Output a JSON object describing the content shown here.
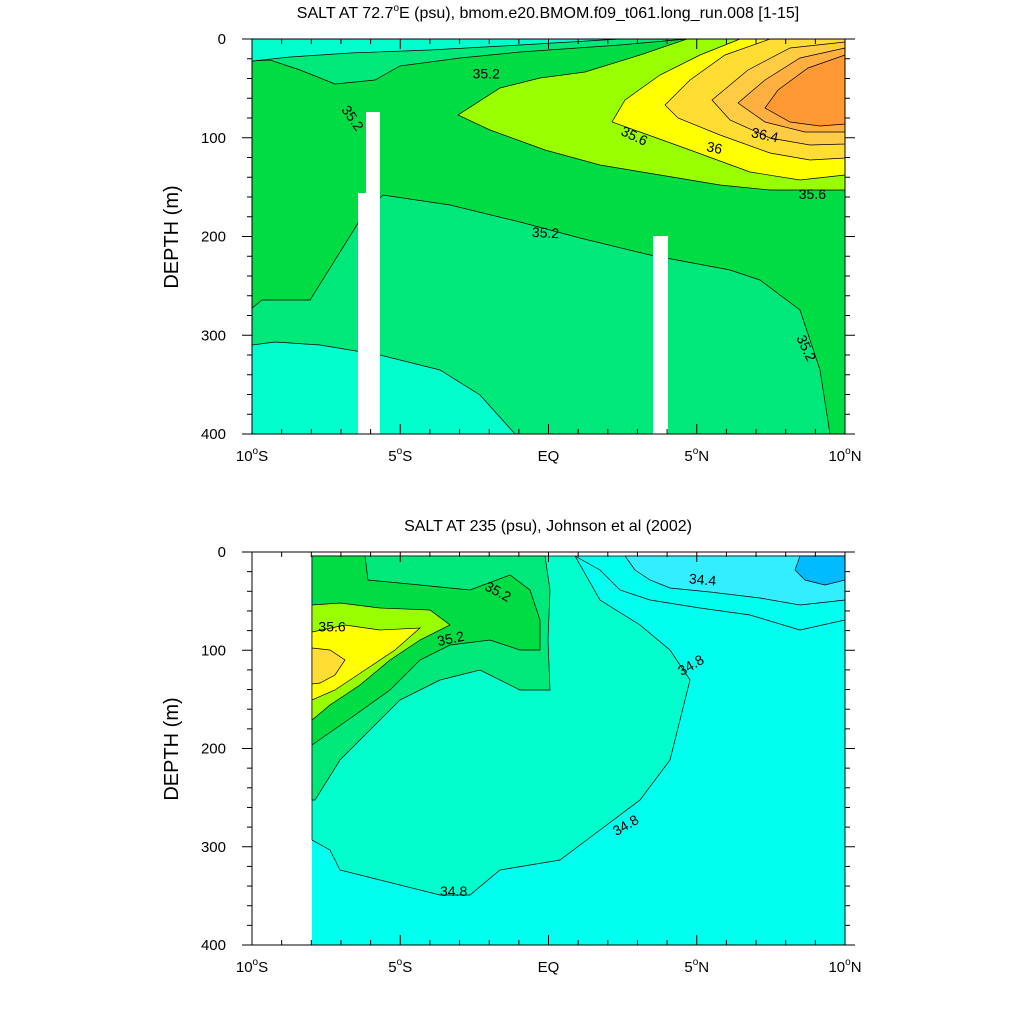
{
  "chart_data": [
    {
      "type": "contour",
      "title": "SALT AT  72.7°E (psu), bmom.e20.BMOM.f09_t061.long_run.008 [1-15]",
      "title_parts": {
        "a": "SALT AT  72.7",
        "deg": "o",
        "b": "E (psu), bmom.e20.BMOM.f09_t061.long_run.008 [1-15]"
      },
      "ylabel": "DEPTH (m)",
      "xlim": [
        -10,
        10
      ],
      "ylim": [
        0,
        400
      ],
      "y_inverted": true,
      "x_ticks": [
        {
          "value": -10,
          "num": "10",
          "deg": "o",
          "hem": "S"
        },
        {
          "value": -5,
          "num": "5",
          "deg": "o",
          "hem": "S"
        },
        {
          "value": 0,
          "num": "EQ",
          "deg": "",
          "hem": ""
        },
        {
          "value": 5,
          "num": "5",
          "deg": "o",
          "hem": "N"
        },
        {
          "value": 10,
          "num": "10",
          "deg": "o",
          "hem": "N"
        }
      ],
      "y_ticks": [
        0,
        100,
        200,
        300,
        400
      ],
      "colors": {
        "b34_8": "#00ffcc",
        "b35_0": "#00e87a",
        "b35_2": "#00dd44",
        "b35_4": "#99ff00",
        "b35_6": "#ffff00",
        "b35_8": "#ffdd33",
        "b36_0": "#ffcc44",
        "b36_2": "#ffb040",
        "b36_4": "#ff9933",
        "land": "#ffffff"
      },
      "contour_labels": [
        {
          "text": "35.2",
          "lat": -2.1,
          "depth": 35,
          "angle": 0
        },
        {
          "text": "35.2",
          "lat": -6.6,
          "depth": 80,
          "angle": 55
        },
        {
          "text": "35.6",
          "lat": 2.9,
          "depth": 98,
          "angle": 25
        },
        {
          "text": "36",
          "lat": 5.6,
          "depth": 110,
          "angle": 12
        },
        {
          "text": "36.4",
          "lat": 7.3,
          "depth": 97,
          "angle": 12
        },
        {
          "text": "35.6",
          "lat": 8.9,
          "depth": 157,
          "angle": 0
        },
        {
          "text": "35.2",
          "lat": -0.1,
          "depth": 196,
          "angle": 3
        },
        {
          "text": "35.2",
          "lat": 8.7,
          "depth": 313,
          "angle": 65
        }
      ]
    },
    {
      "type": "contour",
      "title": "SALT AT 235 (psu), Johnson et al (2002)",
      "ylabel": "DEPTH (m)",
      "xlim": [
        -10,
        10
      ],
      "ylim": [
        0,
        400
      ],
      "y_inverted": true,
      "x_ticks": [
        {
          "value": -10,
          "num": "10",
          "deg": "o",
          "hem": "S"
        },
        {
          "value": -5,
          "num": "5",
          "deg": "o",
          "hem": "S"
        },
        {
          "value": 0,
          "num": "EQ",
          "deg": "",
          "hem": ""
        },
        {
          "value": 5,
          "num": "5",
          "deg": "o",
          "hem": "N"
        },
        {
          "value": 10,
          "num": "10",
          "deg": "o",
          "hem": "N"
        }
      ],
      "y_ticks": [
        0,
        100,
        200,
        300,
        400
      ],
      "colors": {
        "b34_2": "#00bbff",
        "b34_4": "#33eeff",
        "b34_6": "#00ffee",
        "b34_8": "#00ffcc",
        "b35_0": "#00e87a",
        "b35_2": "#00dd44",
        "b35_4": "#99ff00",
        "b35_6": "#ffff00",
        "b35_8": "#ffdd33",
        "land": "#ffffff"
      },
      "contour_labels": [
        {
          "text": "35.2",
          "lat": -1.7,
          "depth": 40,
          "angle": 28
        },
        {
          "text": "35.6",
          "lat": -7.3,
          "depth": 76,
          "angle": 0
        },
        {
          "text": "35.2",
          "lat": -3.3,
          "depth": 88,
          "angle": -12
        },
        {
          "text": "34.4",
          "lat": 5.2,
          "depth": 28,
          "angle": 5
        },
        {
          "text": "34.8",
          "lat": 4.8,
          "depth": 115,
          "angle": -30
        },
        {
          "text": "34.8",
          "lat": 2.6,
          "depth": 278,
          "angle": -30
        },
        {
          "text": "34.8",
          "lat": -3.2,
          "depth": 345,
          "angle": 0
        }
      ]
    }
  ]
}
